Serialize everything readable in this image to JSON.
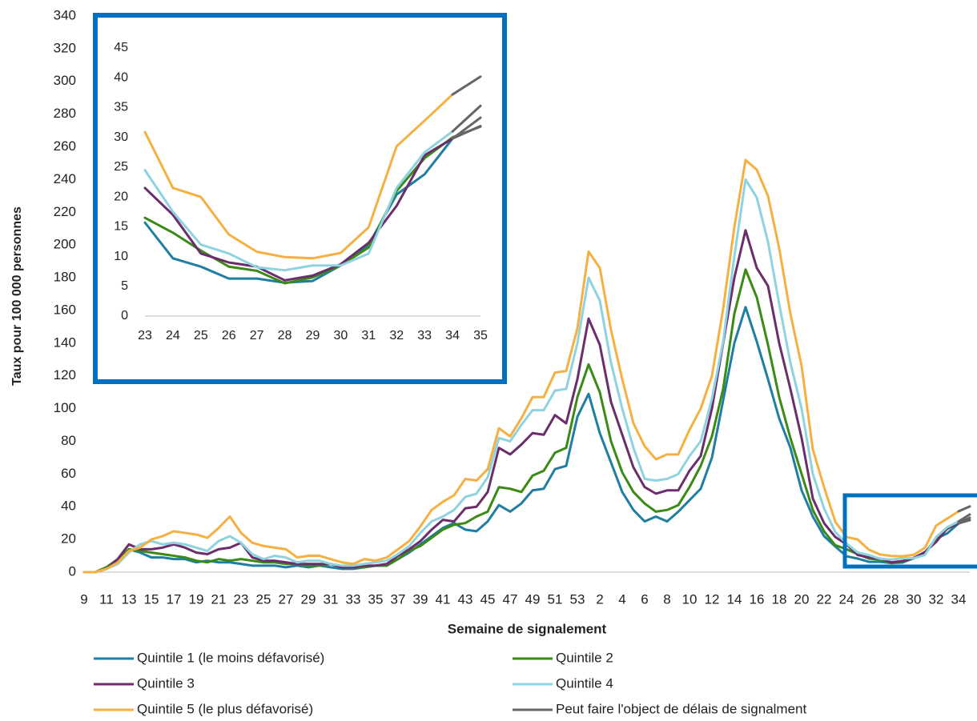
{
  "chart_data": [
    {
      "type": "line",
      "x_label": "Semaine de signalement",
      "y_label": "Taux pour 100 000 personnes",
      "ylim": [
        0,
        340
      ],
      "yticks": [
        0,
        20,
        40,
        60,
        80,
        100,
        120,
        140,
        160,
        180,
        200,
        220,
        240,
        260,
        280,
        300,
        320,
        340
      ],
      "grid": false,
      "categories": [
        "9",
        null,
        "11",
        null,
        "13",
        null,
        "15",
        null,
        "17",
        null,
        "19",
        null,
        "21",
        null,
        "23",
        null,
        "25",
        null,
        "27",
        null,
        "29",
        null,
        "31",
        null,
        "33",
        null,
        "35",
        null,
        "37",
        null,
        "39",
        null,
        "41",
        null,
        "43",
        null,
        "45",
        null,
        "47",
        null,
        "49",
        null,
        "51",
        null,
        "53",
        null,
        "2",
        null,
        "4",
        null,
        "6",
        null,
        "8",
        null,
        "10",
        null,
        "12",
        null,
        "14",
        null,
        "16",
        null,
        "18",
        null,
        "20",
        null,
        "22",
        null,
        "24",
        null,
        "26",
        null,
        "28",
        null,
        "30",
        null,
        "32",
        null,
        "34",
        null
      ],
      "series": [
        {
          "name": "Quintile 1 (le moins défavorisé)",
          "color": "#1f7ea1",
          "values": [
            0,
            0,
            3,
            6,
            14,
            12,
            9,
            9,
            8,
            8,
            6,
            7,
            6,
            6,
            5,
            4,
            4,
            4,
            3,
            4,
            3,
            4,
            3,
            2,
            2,
            3,
            4,
            4,
            8,
            12,
            17,
            22,
            27,
            30,
            26,
            25,
            31,
            41,
            37,
            42,
            50,
            51,
            63,
            65,
            95,
            109,
            85,
            67,
            49,
            38,
            31,
            34,
            31,
            37,
            44,
            51,
            70,
            105,
            140,
            162,
            141,
            118,
            94,
            76,
            50,
            34,
            22,
            15.7,
            9.7,
            8.3,
            6.3,
            6.3,
            5.6,
            5.9,
            8.5,
            12,
            20.4,
            23.8,
            29.8,
            null
          ]
        },
        {
          "name": "Quintile 2",
          "color": "#3a8a15",
          "values": [
            0,
            0,
            3,
            8,
            14,
            13,
            12,
            11,
            10,
            9,
            7,
            6,
            8,
            7,
            8,
            7,
            6,
            6,
            5,
            5,
            4,
            4,
            5,
            3,
            3,
            3,
            4,
            4,
            8,
            13,
            16,
            21,
            26,
            29,
            30,
            34,
            37,
            52,
            51,
            49,
            59,
            62,
            73,
            76,
            107,
            127,
            110,
            80,
            61,
            49,
            42,
            37,
            38,
            41,
            52,
            65,
            83,
            112,
            158,
            185,
            168,
            139,
            107,
            82,
            60,
            38,
            25,
            16.5,
            14,
            11,
            8.3,
            7.6,
            5.5,
            6.5,
            8.5,
            11.5,
            21,
            26.5,
            30,
            null
          ]
        },
        {
          "name": "Quintile 3",
          "color": "#6b2d6b",
          "values": [
            0,
            0,
            2,
            8,
            17,
            14,
            14,
            15,
            17,
            15,
            12,
            11,
            14,
            15,
            18,
            9,
            7,
            7,
            6,
            5,
            5,
            5,
            5,
            3,
            3,
            4,
            4,
            5,
            10,
            14,
            19,
            26,
            32,
            31,
            39,
            40,
            49,
            76,
            72,
            78,
            85,
            84,
            96,
            91,
            118,
            155,
            139,
            104,
            84,
            64,
            52,
            48,
            50,
            50,
            62,
            71,
            100,
            140,
            180,
            209,
            186,
            175,
            140,
            112,
            82,
            45,
            30,
            21.5,
            17,
            10.5,
            9,
            8.3,
            6,
            6.8,
            8.7,
            12.3,
            18.5,
            27,
            29.8,
            null
          ]
        },
        {
          "name": "Quintile 4",
          "color": "#8fd3e0",
          "values": [
            0,
            0,
            2,
            5,
            12,
            17,
            19,
            17,
            18,
            17,
            15,
            13,
            19,
            22,
            18,
            11,
            8,
            10,
            9,
            6,
            7,
            7,
            5,
            4,
            4,
            5,
            6,
            7,
            11,
            16,
            24,
            31,
            34,
            38,
            46,
            48,
            58,
            82,
            80,
            90,
            99,
            99,
            111,
            112,
            140,
            180,
            166,
            128,
            100,
            76,
            57,
            56,
            57,
            60,
            71,
            80,
            106,
            141,
            193,
            240,
            229,
            202,
            164,
            128,
            100,
            60,
            39,
            24.5,
            17.5,
            12,
            10.5,
            8.2,
            7.7,
            8.5,
            8.5,
            10.5,
            21.5,
            27.5,
            31,
            null
          ]
        },
        {
          "name": "Quintile 5 (le plus défavorisé)",
          "color": "#f5b041",
          "values": [
            0,
            0,
            2,
            6,
            13,
            15,
            20,
            22,
            25,
            24,
            23,
            21,
            27,
            34,
            24,
            18,
            16,
            15,
            14,
            9,
            10,
            10,
            8,
            6,
            5,
            8,
            7,
            9,
            14,
            19,
            28,
            38,
            43,
            47,
            57,
            56,
            63,
            88,
            83,
            94,
            107,
            107,
            122,
            123,
            149,
            196,
            186,
            148,
            118,
            91,
            77,
            69,
            72,
            72,
            87,
            100,
            120,
            161,
            211,
            252,
            246,
            230,
            198,
            158,
            126,
            75,
            52,
            30.9,
            21.5,
            20,
            13.7,
            10.8,
            9.9,
            9.7,
            10.6,
            14.9,
            28.5,
            32.8,
            37.2,
            null
          ]
        }
      ],
      "delayed": {
        "name": "Peut faire l'object de délais de signalment",
        "color": "#666666",
        "values": [
          [
            null,
            null,
            null,
            null,
            null,
            null,
            null,
            null,
            null,
            null,
            null,
            null,
            null,
            null,
            null,
            null,
            null,
            null,
            null,
            null,
            null,
            null,
            null,
            null,
            null,
            null,
            null,
            null,
            null,
            null,
            null,
            null,
            null,
            null,
            null,
            null,
            null,
            null,
            null,
            null,
            null,
            null,
            null,
            null,
            null,
            null,
            null,
            null,
            null,
            null,
            null,
            null,
            null,
            null,
            null,
            null,
            null,
            null,
            null,
            null,
            null,
            null,
            null,
            null,
            null,
            null,
            null,
            null,
            null,
            null,
            null,
            null,
            null,
            null,
            null,
            null,
            null,
            null,
            29.8,
            31.9
          ],
          [
            null,
            null,
            null,
            null,
            null,
            null,
            null,
            null,
            null,
            null,
            null,
            null,
            null,
            null,
            null,
            null,
            null,
            null,
            null,
            null,
            null,
            null,
            null,
            null,
            null,
            null,
            null,
            null,
            null,
            null,
            null,
            null,
            null,
            null,
            null,
            null,
            null,
            null,
            null,
            null,
            null,
            null,
            null,
            null,
            null,
            null,
            null,
            null,
            null,
            null,
            null,
            null,
            null,
            null,
            null,
            null,
            null,
            null,
            null,
            null,
            null,
            null,
            null,
            null,
            null,
            null,
            null,
            null,
            null,
            null,
            null,
            null,
            null,
            null,
            null,
            null,
            null,
            null,
            30,
            31.8
          ],
          [
            null,
            null,
            null,
            null,
            null,
            null,
            null,
            null,
            null,
            null,
            null,
            null,
            null,
            null,
            null,
            null,
            null,
            null,
            null,
            null,
            null,
            null,
            null,
            null,
            null,
            null,
            null,
            null,
            null,
            null,
            null,
            null,
            null,
            null,
            null,
            null,
            null,
            null,
            null,
            null,
            null,
            null,
            null,
            null,
            null,
            null,
            null,
            null,
            null,
            null,
            null,
            null,
            null,
            null,
            null,
            null,
            null,
            null,
            null,
            null,
            null,
            null,
            null,
            null,
            null,
            null,
            null,
            null,
            null,
            null,
            null,
            null,
            null,
            null,
            null,
            null,
            null,
            null,
            29.8,
            33.3
          ],
          [
            null,
            null,
            null,
            null,
            null,
            null,
            null,
            null,
            null,
            null,
            null,
            null,
            null,
            null,
            null,
            null,
            null,
            null,
            null,
            null,
            null,
            null,
            null,
            null,
            null,
            null,
            null,
            null,
            null,
            null,
            null,
            null,
            null,
            null,
            null,
            null,
            null,
            null,
            null,
            null,
            null,
            null,
            null,
            null,
            null,
            null,
            null,
            null,
            null,
            null,
            null,
            null,
            null,
            null,
            null,
            null,
            null,
            null,
            null,
            null,
            null,
            null,
            null,
            null,
            null,
            null,
            null,
            null,
            null,
            null,
            null,
            null,
            null,
            null,
            null,
            null,
            null,
            null,
            31,
            35.3
          ],
          [
            null,
            null,
            null,
            null,
            null,
            null,
            null,
            null,
            null,
            null,
            null,
            null,
            null,
            null,
            null,
            null,
            null,
            null,
            null,
            null,
            null,
            null,
            null,
            null,
            null,
            null,
            null,
            null,
            null,
            null,
            null,
            null,
            null,
            null,
            null,
            null,
            null,
            null,
            null,
            null,
            null,
            null,
            null,
            null,
            null,
            null,
            null,
            null,
            null,
            null,
            null,
            null,
            null,
            null,
            null,
            null,
            null,
            null,
            null,
            null,
            null,
            null,
            null,
            null,
            null,
            null,
            null,
            null,
            null,
            null,
            null,
            null,
            null,
            null,
            null,
            null,
            null,
            null,
            37.2,
            40.2
          ]
        ]
      }
    },
    {
      "type": "line",
      "ylim": [
        0,
        45
      ],
      "yticks": [
        0,
        5,
        10,
        15,
        20,
        25,
        30,
        35,
        40,
        45
      ],
      "grid": false,
      "categories": [
        "23",
        "24",
        "25",
        "26",
        "27",
        "28",
        "29",
        "30",
        "31",
        "32",
        "33",
        "34",
        "35"
      ],
      "series": [
        {
          "color": "#1f7ea1",
          "values": [
            15.7,
            9.7,
            8.3,
            6.3,
            6.3,
            5.6,
            5.9,
            8.5,
            12,
            20.4,
            23.8,
            29.8,
            null
          ]
        },
        {
          "color": "#3a8a15",
          "values": [
            16.5,
            14,
            11,
            8.3,
            7.6,
            5.5,
            6.5,
            8.5,
            11.5,
            21,
            26.5,
            30,
            null
          ]
        },
        {
          "color": "#6b2d6b",
          "values": [
            21.5,
            17,
            10.5,
            9,
            8.3,
            6,
            6.8,
            8.7,
            12.3,
            18.5,
            27,
            29.8,
            null
          ]
        },
        {
          "color": "#8fd3e0",
          "values": [
            24.5,
            17.5,
            12,
            10.5,
            8.2,
            7.7,
            8.5,
            8.5,
            10.5,
            21.5,
            27.5,
            31,
            null
          ]
        },
        {
          "color": "#f5b041",
          "values": [
            30.9,
            21.5,
            20,
            13.7,
            10.8,
            9.9,
            9.7,
            10.6,
            14.9,
            28.5,
            32.8,
            37.2,
            null
          ]
        }
      ],
      "delayed": {
        "color": "#666666",
        "values": [
          [
            null,
            null,
            null,
            null,
            null,
            null,
            null,
            null,
            null,
            null,
            null,
            29.8,
            31.9
          ],
          [
            null,
            null,
            null,
            null,
            null,
            null,
            null,
            null,
            null,
            null,
            null,
            30,
            31.8
          ],
          [
            null,
            null,
            null,
            null,
            null,
            null,
            null,
            null,
            null,
            null,
            null,
            29.8,
            33.3
          ],
          [
            null,
            null,
            null,
            null,
            null,
            null,
            null,
            null,
            null,
            null,
            null,
            31,
            35.3
          ],
          [
            null,
            null,
            null,
            null,
            null,
            null,
            null,
            null,
            null,
            null,
            null,
            37.2,
            40.2
          ]
        ]
      }
    }
  ]
}
